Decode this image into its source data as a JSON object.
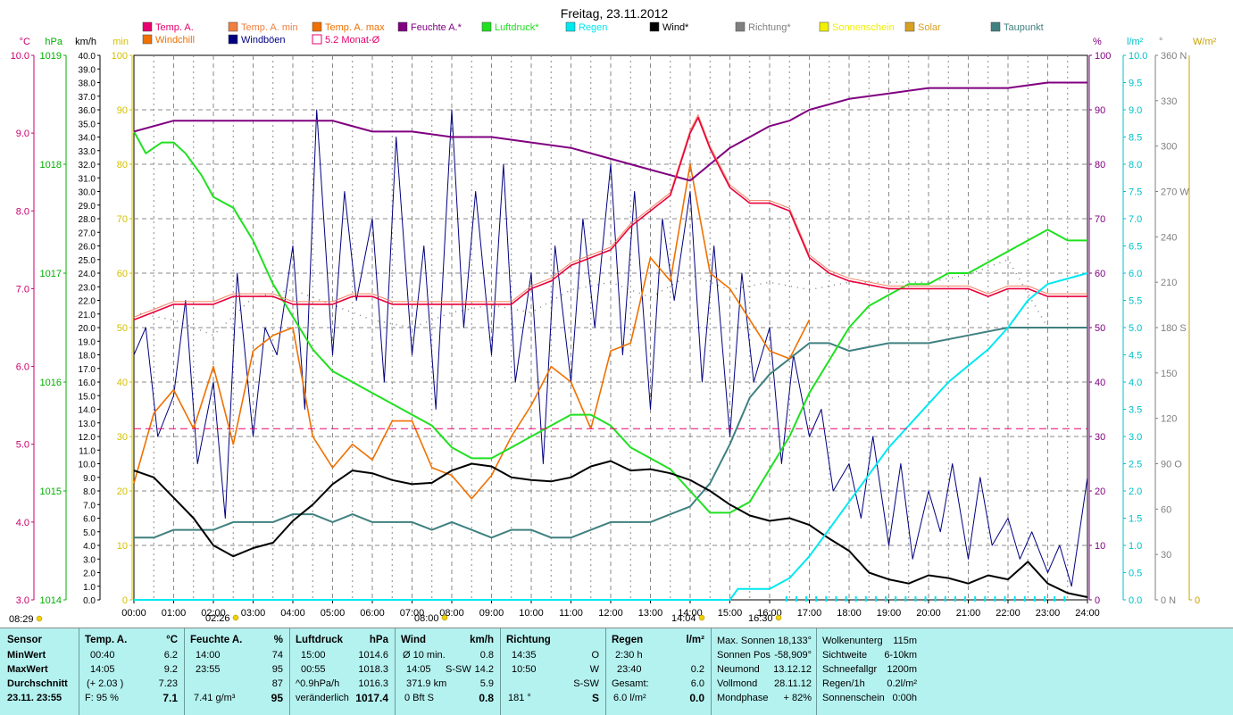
{
  "chart_data": {
    "type": "line",
    "title": "Freitag, 23.11.2012",
    "x_ticks": [
      "00:00",
      "01:00",
      "02:00",
      "03:00",
      "04:00",
      "05:00",
      "06:00",
      "07:00",
      "08:00",
      "09:00",
      "10:00",
      "11:00",
      "12:00",
      "13:00",
      "14:00",
      "15:00",
      "16:00",
      "17:00",
      "18:00",
      "19:00",
      "20:00",
      "21:00",
      "22:00",
      "23:00",
      "24:00"
    ],
    "xlim": [
      0,
      24
    ],
    "left_axes": [
      {
        "unit": "°C",
        "color": "#c8006e",
        "ticks": [
          "10.0",
          "9.0",
          "8.0",
          "7.0",
          "6.0",
          "5.0",
          "4.0",
          "3.0"
        ]
      },
      {
        "unit": "hPa",
        "color": "#00b000",
        "ticks": [
          "1019",
          "1018",
          "1017",
          "1016",
          "1015",
          "1014"
        ]
      },
      {
        "unit": "km/h",
        "color": "#000000",
        "ticks": [
          "40.0",
          "39.0",
          "38.0",
          "37.0",
          "36.0",
          "35.0",
          "34.0",
          "33.0",
          "32.0",
          "31.0",
          "30.0",
          "29.0",
          "28.0",
          "27.0",
          "26.0",
          "25.0",
          "24.0",
          "23.0",
          "22.0",
          "21.0",
          "20.0",
          "19.0",
          "18.0",
          "17.0",
          "16.0",
          "15.0",
          "14.0",
          "13.0",
          "12.0",
          "11.0",
          "10.0",
          "9.0",
          "8.0",
          "7.0",
          "6.0",
          "5.0",
          "4.0",
          "3.0",
          "2.0",
          "1.0",
          "0.0"
        ]
      },
      {
        "unit": "min",
        "color": "#d4c000",
        "ticks": [
          "100",
          "90",
          "80",
          "70",
          "60",
          "50",
          "40",
          "30",
          "20",
          "10",
          "0"
        ]
      }
    ],
    "right_axes": [
      {
        "unit": "%",
        "color": "#800080",
        "ticks": [
          "100",
          "90",
          "80",
          "70",
          "60",
          "50",
          "40",
          "30",
          "20",
          "10",
          "0"
        ]
      },
      {
        "unit": "l/m²",
        "color": "#00c0c8",
        "ticks": [
          "10.0",
          "9.5",
          "9.0",
          "8.5",
          "8.0",
          "7.5",
          "7.0",
          "6.5",
          "6.0",
          "5.5",
          "5.0",
          "4.5",
          "4.0",
          "3.5",
          "3.0",
          "2.5",
          "2.0",
          "1.5",
          "1.0",
          "0.5",
          "0.0"
        ]
      },
      {
        "unit": "°",
        "color": "#808080",
        "ticks": [
          "360 N",
          "330",
          "300",
          "270 W",
          "240",
          "210",
          "180 S",
          "150",
          "120",
          "90 O",
          "60",
          "30",
          "0 N"
        ]
      },
      {
        "unit": "W/m²",
        "color": "#c8a000",
        "ticks": [
          "0"
        ]
      }
    ],
    "legend": [
      {
        "label": "Temp. A.",
        "color": "#e8006e",
        "style": "box"
      },
      {
        "label": "Temp. A. min",
        "color": "#f08040",
        "style": "box"
      },
      {
        "label": "Temp. A. max",
        "color": "#f07000",
        "style": "box"
      },
      {
        "label": "Feuchte A.*",
        "color": "#800080",
        "style": "box"
      },
      {
        "label": "Luftdruck*",
        "color": "#20e020",
        "style": "box"
      },
      {
        "label": "Regen",
        "color": "#00e8f0",
        "style": "box"
      },
      {
        "label": "Wind*",
        "color": "#000000",
        "style": "box"
      },
      {
        "label": "Richtung*",
        "color": "#808080",
        "style": "box"
      },
      {
        "label": "Sonnenschein",
        "color": "#f0f000",
        "style": "box"
      },
      {
        "label": "Solar",
        "color": "#d8a020",
        "style": "box"
      },
      {
        "label": "Taupunkt",
        "color": "#408080",
        "style": "box"
      },
      {
        "label": "Windchill",
        "color": "#f07000",
        "style": "box"
      },
      {
        "label": "Windböen",
        "color": "#000080",
        "style": "box"
      },
      {
        "label": "5.2 Monat-Ø",
        "color": "#e8006e",
        "style": "outline"
      }
    ],
    "monthly_avg_temp": 5.2,
    "series": [
      {
        "name": "Temp. A.",
        "unit": "°C",
        "x": [
          0,
          0.5,
          1,
          1.5,
          2,
          2.5,
          3,
          3.5,
          4,
          4.5,
          5,
          5.5,
          6,
          6.5,
          7,
          7.5,
          8,
          8.5,
          9,
          9.5,
          10,
          10.5,
          11,
          11.5,
          12,
          12.5,
          13,
          13.5,
          14,
          14.2,
          14.5,
          15,
          15.5,
          16,
          16.5,
          17,
          17.5,
          18,
          19,
          20,
          21,
          21.5,
          22,
          22.5,
          23,
          23.5,
          24
        ],
        "values": [
          6.6,
          6.7,
          6.8,
          6.8,
          6.8,
          6.9,
          6.9,
          6.9,
          6.8,
          6.8,
          6.8,
          6.9,
          6.9,
          6.8,
          6.8,
          6.8,
          6.8,
          6.8,
          6.8,
          6.8,
          7.0,
          7.1,
          7.3,
          7.4,
          7.5,
          7.8,
          8.0,
          8.2,
          9.0,
          9.2,
          8.8,
          8.3,
          8.1,
          8.1,
          8.0,
          7.4,
          7.2,
          7.1,
          7.0,
          7.0,
          7.0,
          6.9,
          7.0,
          7.0,
          6.9,
          6.9,
          6.9
        ]
      },
      {
        "name": "Luftdruck*",
        "unit": "hPa",
        "x": [
          0,
          0.3,
          0.7,
          1,
          1.3,
          1.7,
          2,
          2.5,
          3,
          3.5,
          4,
          4.5,
          5,
          5.5,
          6,
          6.5,
          7,
          7.5,
          8,
          8.5,
          9,
          9.5,
          10,
          10.5,
          11,
          11.5,
          12,
          12.5,
          13,
          13.5,
          14,
          14.5,
          15,
          15.5,
          16,
          16.5,
          17,
          17.5,
          18,
          18.5,
          19,
          19.5,
          20,
          20.5,
          21,
          21.5,
          22,
          22.5,
          23,
          23.5,
          24
        ],
        "values": [
          1018.3,
          1018.1,
          1018.2,
          1018.2,
          1018.1,
          1017.9,
          1017.7,
          1017.6,
          1017.3,
          1016.9,
          1016.6,
          1016.3,
          1016.1,
          1016.0,
          1015.9,
          1015.8,
          1015.7,
          1015.6,
          1015.4,
          1015.3,
          1015.3,
          1015.4,
          1015.5,
          1015.6,
          1015.7,
          1015.7,
          1015.6,
          1015.4,
          1015.3,
          1015.2,
          1015.0,
          1014.8,
          1014.8,
          1014.9,
          1015.2,
          1015.5,
          1015.9,
          1016.2,
          1016.5,
          1016.7,
          1016.8,
          1016.9,
          1016.9,
          1017.0,
          1017.0,
          1017.1,
          1017.2,
          1017.3,
          1017.4,
          1017.3,
          1017.3
        ]
      },
      {
        "name": "Feuchte A.*",
        "unit": "%",
        "x": [
          0,
          1,
          2,
          3,
          4,
          5,
          6,
          7,
          8,
          9,
          10,
          11,
          12,
          13,
          13.5,
          14,
          14.5,
          15,
          15.5,
          16,
          16.5,
          17,
          18,
          19,
          20,
          21,
          22,
          23,
          24
        ],
        "values": [
          86,
          88,
          88,
          88,
          88,
          88,
          86,
          86,
          85,
          85,
          84,
          83,
          81,
          79,
          78,
          77,
          80,
          83,
          85,
          87,
          88,
          90,
          92,
          93,
          94,
          94,
          94,
          95,
          95
        ]
      },
      {
        "name": "Wind*",
        "unit": "km/h",
        "x": [
          0,
          0.5,
          1,
          1.5,
          2,
          2.5,
          3,
          3.5,
          4,
          4.5,
          5,
          5.5,
          6,
          6.5,
          7,
          7.5,
          8,
          8.5,
          9,
          9.5,
          10,
          10.5,
          11,
          11.5,
          12,
          12.5,
          13,
          13.5,
          14,
          14.5,
          15,
          15.5,
          16,
          16.5,
          17,
          17.5,
          18,
          18.5,
          19,
          19.5,
          20,
          20.5,
          21,
          21.5,
          22,
          22.5,
          23,
          23.5,
          24
        ],
        "values": [
          9.5,
          9.0,
          7.5,
          6.0,
          4.0,
          3.2,
          3.8,
          4.2,
          5.8,
          7.0,
          8.5,
          9.5,
          9.3,
          8.8,
          8.5,
          8.6,
          9.5,
          10.0,
          9.8,
          9.0,
          8.8,
          8.7,
          9.0,
          9.8,
          10.2,
          9.5,
          9.6,
          9.3,
          8.8,
          8.0,
          7.0,
          6.2,
          5.8,
          6.0,
          5.5,
          4.5,
          3.6,
          2.0,
          1.5,
          1.2,
          1.8,
          1.6,
          1.2,
          1.8,
          1.5,
          2.8,
          1.2,
          0.5,
          0.2
        ]
      },
      {
        "name": "Windböen",
        "unit": "km/h",
        "x": [
          0,
          0.3,
          0.6,
          1,
          1.3,
          1.6,
          2,
          2.3,
          2.6,
          3,
          3.3,
          3.6,
          4,
          4.3,
          4.6,
          5,
          5.3,
          5.6,
          6,
          6.3,
          6.6,
          7,
          7.3,
          7.6,
          8,
          8.3,
          8.6,
          9,
          9.3,
          9.6,
          10,
          10.3,
          10.6,
          11,
          11.3,
          11.6,
          12,
          12.3,
          12.6,
          13,
          13.3,
          13.6,
          14,
          14.3,
          14.6,
          15,
          15.3,
          15.6,
          16,
          16.3,
          16.6,
          17,
          17.3,
          17.6,
          18,
          18.3,
          18.6,
          19,
          19.3,
          19.6,
          20,
          20.3,
          20.6,
          21,
          21.3,
          21.6,
          22,
          22.3,
          22.6,
          23,
          23.3,
          23.6,
          24
        ],
        "values": [
          18,
          20,
          12,
          15,
          22,
          10,
          16,
          6,
          24,
          12,
          20,
          18,
          26,
          14,
          36,
          18,
          30,
          22,
          28,
          16,
          34,
          18,
          26,
          14,
          36,
          20,
          30,
          18,
          32,
          16,
          24,
          10,
          26,
          16,
          28,
          20,
          32,
          18,
          30,
          14,
          28,
          22,
          30,
          16,
          26,
          12,
          24,
          16,
          20,
          10,
          18,
          12,
          14,
          8,
          10,
          6,
          12,
          4,
          10,
          3,
          8,
          5,
          10,
          3,
          9,
          4,
          6,
          3,
          5,
          2,
          4,
          1,
          9
        ]
      },
      {
        "name": "Taupunkt",
        "unit": "°C",
        "x": [
          0,
          0.5,
          1,
          1.5,
          2,
          2.5,
          3,
          3.5,
          4,
          4.5,
          5,
          5.5,
          6,
          6.5,
          7,
          7.5,
          8,
          8.5,
          9,
          9.5,
          10,
          10.5,
          11,
          11.5,
          12,
          12.5,
          13,
          13.5,
          14,
          14.5,
          15,
          15.5,
          16,
          16.5,
          17,
          17.5,
          18,
          19,
          20,
          21,
          22,
          23,
          24
        ],
        "values": [
          3.8,
          3.8,
          3.9,
          3.9,
          3.9,
          4.0,
          4.0,
          4.0,
          4.1,
          4.1,
          4.0,
          4.1,
          4.0,
          4.0,
          4.0,
          3.9,
          4.0,
          3.9,
          3.8,
          3.9,
          3.9,
          3.8,
          3.8,
          3.9,
          4.0,
          4.0,
          4.0,
          4.1,
          4.2,
          4.5,
          5.0,
          5.6,
          5.9,
          6.1,
          6.3,
          6.3,
          6.2,
          6.3,
          6.3,
          6.4,
          6.5,
          6.5,
          6.5
        ]
      },
      {
        "name": "Windchill",
        "unit": "°C",
        "x": [
          0,
          0.5,
          1,
          1.5,
          2,
          2.5,
          3,
          3.5,
          4,
          4.5,
          5,
          5.5,
          6,
          6.5,
          7,
          7.5,
          8,
          8.5,
          9,
          9.5,
          10,
          10.5,
          11,
          11.5,
          12,
          12.5,
          13,
          13.5,
          14,
          14.5,
          15,
          15.5,
          16,
          16.5,
          17
        ],
        "values": [
          4.5,
          5.4,
          5.7,
          5.2,
          6.0,
          5.0,
          6.2,
          6.4,
          6.5,
          5.1,
          4.7,
          5.0,
          4.8,
          5.3,
          5.3,
          4.7,
          4.6,
          4.3,
          4.6,
          5.1,
          5.5,
          6.0,
          5.8,
          5.2,
          6.2,
          6.3,
          7.4,
          7.1,
          8.6,
          7.2,
          7.0,
          6.6,
          6.2,
          6.1,
          6.6
        ]
      },
      {
        "name": "Richtung*",
        "unit": "°",
        "x": [
          0,
          1,
          2,
          3,
          4,
          5,
          6,
          7,
          8,
          9,
          10,
          11,
          12,
          13,
          14,
          15,
          16,
          17,
          18,
          19,
          20,
          21,
          22,
          23,
          24
        ],
        "values": [
          190,
          185,
          175,
          200,
          205,
          195,
          185,
          180,
          190,
          195,
          190,
          205,
          210,
          200,
          215,
          205,
          210,
          205,
          210,
          210,
          210,
          215,
          225,
          180,
          180
        ]
      },
      {
        "name": "Regen",
        "unit": "l/m²",
        "x": [
          0,
          15,
          15.2,
          16,
          16.5,
          17,
          17.5,
          18,
          18.5,
          19,
          19.5,
          20,
          20.5,
          21,
          21.5,
          22,
          22.5,
          23,
          23.5,
          24
        ],
        "values": [
          0,
          0,
          0.2,
          0.2,
          0.4,
          0.8,
          1.3,
          1.8,
          2.3,
          2.8,
          3.2,
          3.6,
          4.0,
          4.3,
          4.6,
          5.0,
          5.5,
          5.8,
          5.9,
          6.0
        ]
      }
    ],
    "sun_markers": [
      {
        "time": "08:29",
        "label": "08:29"
      },
      {
        "time": "02:26",
        "label": "02:26"
      },
      {
        "time": "08:00",
        "label": "08:00"
      },
      {
        "time": "14:04",
        "label": "14:04"
      },
      {
        "time": "16:30",
        "label": "16:30"
      }
    ]
  },
  "stats": {
    "sensor": {
      "header": "Sensor",
      "rows": [
        "MinWert",
        "MaxWert",
        "Durchschnitt",
        "23.11. 23:55"
      ]
    },
    "temp": {
      "header": "Temp. A.",
      "unit": "°C",
      "min_time": "00:40",
      "min": "6.2",
      "max_time": "14:05",
      "max": "9.2",
      "avg_delta": "(+ 2.03 )",
      "avg": "7.23",
      "humidity_label": "F: 95 %",
      "current": "7.1"
    },
    "humidity": {
      "header": "Feuchte A.",
      "unit": "%",
      "min_time": "14:00",
      "min": "74",
      "max_time": "23:55",
      "max": "95",
      "avg": "87",
      "abs": "7.41 g/m³",
      "current": "95"
    },
    "pressure": {
      "header": "Luftdruck",
      "unit": "hPa",
      "min_time": "15:00",
      "min": "1014.6",
      "max_time": "00:55",
      "max": "1018.3",
      "trend": "^0.9hPa/h",
      "avg": "1016.3",
      "tendency": "veränderlich",
      "current": "1017.4"
    },
    "wind": {
      "header": "Wind",
      "unit": "km/h",
      "avg_label": "Ø 10 min.",
      "avg10": "0.8",
      "max_time": "14:05",
      "max_dir": "S-SW",
      "max": "14.2",
      "distance": "371.9 km",
      "avg": "5.9",
      "bft": "0 Bft S",
      "current": "0.8"
    },
    "direction": {
      "header": "Richtung",
      "min_time": "14:35",
      "min": "O",
      "max_time": "10:50",
      "max": "W",
      "avg": "S-SW",
      "deg": "181 °",
      "current": "S"
    },
    "rain": {
      "header": "Regen",
      "unit": "l/m²",
      "duration": "2:30 h",
      "last_time": "23:40",
      "last": "0.2",
      "total_label": "Gesamt:",
      "total": "6.0",
      "current": "6.0 l/m²",
      "current_val": "0.0"
    },
    "astro": {
      "rows": [
        {
          "label": "Max. Sonnen",
          "value": "18,133°"
        },
        {
          "label": "Sonnen Pos",
          "value": "-58,909°"
        },
        {
          "label": "Neumond",
          "value": "13.12.12"
        },
        {
          "label": "Vollmond",
          "value": "28.11.12"
        },
        {
          "label": "Mondphase",
          "value": "+ 82%"
        }
      ]
    },
    "weather": {
      "rows": [
        {
          "label": "Wolkenunterg",
          "value": "115m"
        },
        {
          "label": "Sichtweite",
          "value": "6-10km"
        },
        {
          "label": "Schneefallgr",
          "value": "1200m"
        },
        {
          "label": "Regen/1h",
          "value": "0.2l/m²"
        },
        {
          "label": "Sonnenschein",
          "value": "0:00h"
        }
      ]
    }
  }
}
